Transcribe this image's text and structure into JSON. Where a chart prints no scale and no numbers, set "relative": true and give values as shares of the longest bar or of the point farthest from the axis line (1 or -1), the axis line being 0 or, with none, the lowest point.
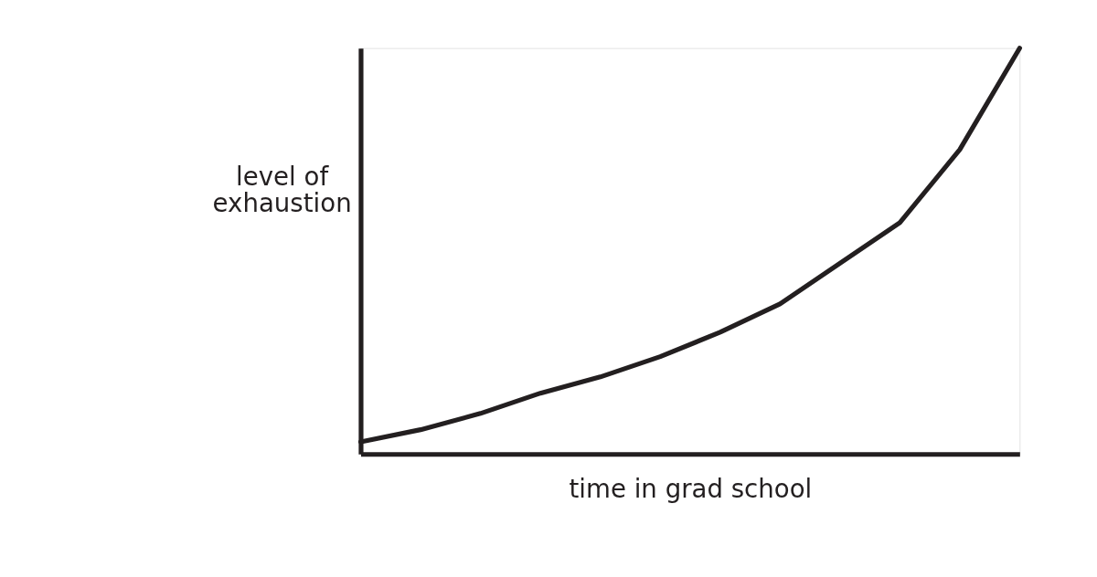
{
  "chart_data": {
    "type": "line",
    "relative": true,
    "xlabel": "time in grad school",
    "ylabel": "level of exhaustion",
    "categories": [
      null,
      null,
      null,
      null,
      null,
      null,
      null,
      null,
      null,
      null,
      null,
      null
    ],
    "series": [
      {
        "color": "#231f20",
        "values": [
          0.03,
          0.06,
          0.1,
          0.15,
          0.19,
          0.24,
          0.3,
          0.37,
          0.47,
          0.57,
          0.75,
          1.0
        ]
      }
    ]
  }
}
